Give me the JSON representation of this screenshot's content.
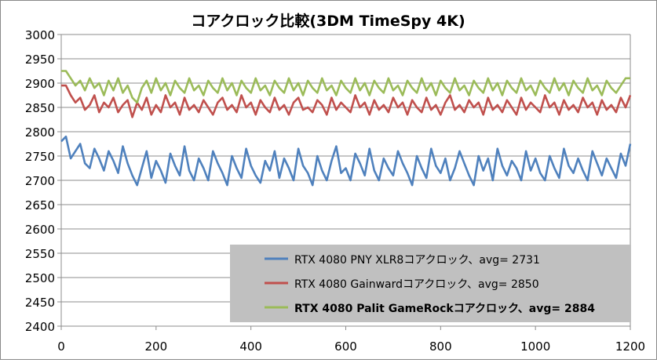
{
  "chart_data": {
    "type": "line",
    "title": "コアクロック比較(3DM TimeSpy 4K)",
    "xlabel": "",
    "ylabel": "",
    "xlim": [
      0,
      1200
    ],
    "ylim": [
      2400,
      3000
    ],
    "x_ticks": [
      "0",
      "200",
      "400",
      "600",
      "800",
      "1000",
      "1200"
    ],
    "y_ticks": [
      "3000",
      "2950",
      "2900",
      "2850",
      "2800",
      "2750",
      "2700",
      "2650",
      "2600",
      "2550",
      "2500",
      "2450",
      "2400"
    ],
    "grid": "horizontal",
    "legend_position": "bottom-right",
    "series": [
      {
        "name": "RTX 4080 PNY XLR8コアクロック、avg= 2731",
        "color": "#4f81bd",
        "legend_bold": false,
        "x": [
          0,
          10,
          20,
          30,
          40,
          50,
          60,
          70,
          80,
          90,
          100,
          110,
          120,
          130,
          140,
          150,
          160,
          170,
          180,
          190,
          200,
          210,
          220,
          230,
          240,
          250,
          260,
          270,
          280,
          290,
          300,
          310,
          320,
          330,
          340,
          350,
          360,
          370,
          380,
          390,
          400,
          410,
          420,
          430,
          440,
          450,
          460,
          470,
          480,
          490,
          500,
          510,
          520,
          530,
          540,
          550,
          560,
          570,
          580,
          590,
          600,
          610,
          620,
          630,
          640,
          650,
          660,
          670,
          680,
          690,
          700,
          710,
          720,
          730,
          740,
          750,
          760,
          770,
          780,
          790,
          800,
          810,
          820,
          830,
          840,
          850,
          860,
          870,
          880,
          890,
          900,
          910,
          920,
          930,
          940,
          950,
          960,
          970,
          980,
          990,
          1000,
          1010,
          1020,
          1030,
          1040,
          1050,
          1060,
          1070,
          1080,
          1090,
          1100,
          1110,
          1120,
          1130,
          1140,
          1150,
          1160,
          1170,
          1180,
          1190,
          1200
        ],
        "values": [
          2780,
          2790,
          2745,
          2760,
          2775,
          2735,
          2725,
          2765,
          2745,
          2720,
          2760,
          2740,
          2715,
          2770,
          2735,
          2710,
          2690,
          2725,
          2760,
          2705,
          2740,
          2720,
          2695,
          2755,
          2730,
          2710,
          2770,
          2720,
          2700,
          2745,
          2725,
          2700,
          2760,
          2735,
          2715,
          2690,
          2750,
          2725,
          2705,
          2765,
          2730,
          2710,
          2695,
          2740,
          2720,
          2760,
          2705,
          2745,
          2725,
          2700,
          2765,
          2730,
          2715,
          2690,
          2750,
          2720,
          2700,
          2740,
          2770,
          2715,
          2725,
          2700,
          2755,
          2735,
          2710,
          2765,
          2720,
          2700,
          2745,
          2725,
          2710,
          2760,
          2735,
          2715,
          2690,
          2750,
          2725,
          2705,
          2765,
          2730,
          2715,
          2745,
          2700,
          2725,
          2760,
          2735,
          2710,
          2690,
          2750,
          2720,
          2745,
          2700,
          2765,
          2730,
          2710,
          2740,
          2725,
          2700,
          2760,
          2720,
          2745,
          2715,
          2700,
          2750,
          2725,
          2705,
          2765,
          2730,
          2715,
          2745,
          2720,
          2700,
          2760,
          2735,
          2710,
          2745,
          2725,
          2705,
          2755,
          2730,
          2775
        ]
      },
      {
        "name": "RTX 4080 Gainwardコアクロック、avg= 2850",
        "color": "#c0504d",
        "legend_bold": false,
        "x": [
          0,
          10,
          20,
          30,
          40,
          50,
          60,
          70,
          80,
          90,
          100,
          110,
          120,
          130,
          140,
          150,
          160,
          170,
          180,
          190,
          200,
          210,
          220,
          230,
          240,
          250,
          260,
          270,
          280,
          290,
          300,
          310,
          320,
          330,
          340,
          350,
          360,
          370,
          380,
          390,
          400,
          410,
          420,
          430,
          440,
          450,
          460,
          470,
          480,
          490,
          500,
          510,
          520,
          530,
          540,
          550,
          560,
          570,
          580,
          590,
          600,
          610,
          620,
          630,
          640,
          650,
          660,
          670,
          680,
          690,
          700,
          710,
          720,
          730,
          740,
          750,
          760,
          770,
          780,
          790,
          800,
          810,
          820,
          830,
          840,
          850,
          860,
          870,
          880,
          890,
          900,
          910,
          920,
          930,
          940,
          950,
          960,
          970,
          980,
          990,
          1000,
          1010,
          1020,
          1030,
          1040,
          1050,
          1060,
          1070,
          1080,
          1090,
          1100,
          1110,
          1120,
          1130,
          1140,
          1150,
          1160,
          1170,
          1180,
          1190,
          1200
        ],
        "values": [
          2895,
          2895,
          2875,
          2860,
          2870,
          2845,
          2855,
          2875,
          2840,
          2860,
          2850,
          2870,
          2840,
          2855,
          2865,
          2830,
          2860,
          2845,
          2870,
          2835,
          2855,
          2840,
          2875,
          2850,
          2860,
          2835,
          2870,
          2845,
          2855,
          2840,
          2865,
          2850,
          2835,
          2860,
          2870,
          2845,
          2855,
          2840,
          2875,
          2850,
          2860,
          2835,
          2865,
          2850,
          2840,
          2870,
          2845,
          2855,
          2835,
          2860,
          2870,
          2845,
          2850,
          2840,
          2865,
          2855,
          2835,
          2870,
          2845,
          2860,
          2850,
          2840,
          2875,
          2850,
          2860,
          2835,
          2865,
          2845,
          2855,
          2840,
          2870,
          2850,
          2860,
          2835,
          2865,
          2850,
          2840,
          2870,
          2845,
          2855,
          2835,
          2860,
          2875,
          2845,
          2855,
          2840,
          2865,
          2850,
          2860,
          2835,
          2870,
          2845,
          2855,
          2840,
          2865,
          2850,
          2835,
          2870,
          2845,
          2860,
          2850,
          2840,
          2875,
          2850,
          2860,
          2835,
          2865,
          2845,
          2855,
          2840,
          2870,
          2850,
          2860,
          2835,
          2865,
          2845,
          2855,
          2840,
          2870,
          2850,
          2875
        ]
      },
      {
        "name": "RTX 4080 Palit GameRockコアクロック、avg= 2884",
        "color": "#9bbb59",
        "legend_bold": true,
        "x": [
          0,
          10,
          20,
          30,
          40,
          50,
          60,
          70,
          80,
          90,
          100,
          110,
          120,
          130,
          140,
          150,
          160,
          170,
          180,
          190,
          200,
          210,
          220,
          230,
          240,
          250,
          260,
          270,
          280,
          290,
          300,
          310,
          320,
          330,
          340,
          350,
          360,
          370,
          380,
          390,
          400,
          410,
          420,
          430,
          440,
          450,
          460,
          470,
          480,
          490,
          500,
          510,
          520,
          530,
          540,
          550,
          560,
          570,
          580,
          590,
          600,
          610,
          620,
          630,
          640,
          650,
          660,
          670,
          680,
          690,
          700,
          710,
          720,
          730,
          740,
          750,
          760,
          770,
          780,
          790,
          800,
          810,
          820,
          830,
          840,
          850,
          860,
          870,
          880,
          890,
          900,
          910,
          920,
          930,
          940,
          950,
          960,
          970,
          980,
          990,
          1000,
          1010,
          1020,
          1030,
          1040,
          1050,
          1060,
          1070,
          1080,
          1090,
          1100,
          1110,
          1120,
          1130,
          1140,
          1150,
          1160,
          1170,
          1180,
          1190,
          1200
        ],
        "values": [
          2925,
          2925,
          2910,
          2895,
          2905,
          2885,
          2910,
          2890,
          2900,
          2875,
          2905,
          2885,
          2910,
          2880,
          2895,
          2870,
          2860,
          2890,
          2905,
          2880,
          2910,
          2885,
          2900,
          2875,
          2905,
          2890,
          2880,
          2910,
          2885,
          2895,
          2875,
          2905,
          2890,
          2880,
          2910,
          2885,
          2900,
          2875,
          2905,
          2890,
          2880,
          2910,
          2885,
          2895,
          2875,
          2905,
          2890,
          2880,
          2910,
          2885,
          2900,
          2875,
          2905,
          2890,
          2880,
          2910,
          2885,
          2895,
          2875,
          2905,
          2890,
          2880,
          2910,
          2885,
          2900,
          2875,
          2905,
          2890,
          2880,
          2910,
          2885,
          2895,
          2875,
          2905,
          2890,
          2880,
          2910,
          2885,
          2900,
          2875,
          2905,
          2890,
          2880,
          2910,
          2885,
          2895,
          2875,
          2905,
          2890,
          2880,
          2910,
          2885,
          2900,
          2875,
          2905,
          2890,
          2880,
          2910,
          2885,
          2895,
          2875,
          2905,
          2890,
          2880,
          2910,
          2885,
          2900,
          2875,
          2905,
          2890,
          2880,
          2910,
          2885,
          2895,
          2875,
          2905,
          2890,
          2880,
          2895,
          2910,
          2910
        ]
      }
    ]
  }
}
